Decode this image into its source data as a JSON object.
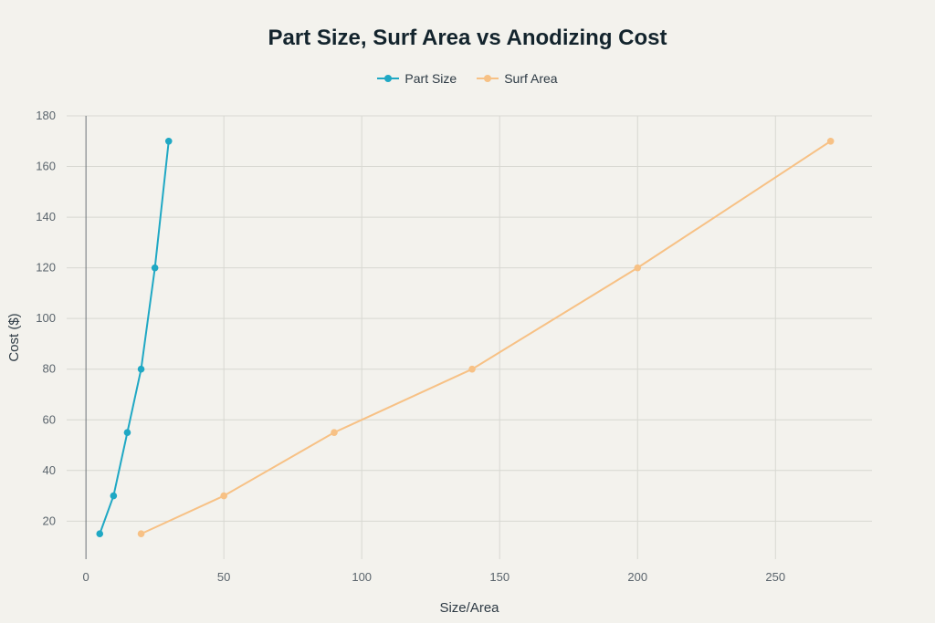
{
  "chart_data": {
    "type": "line",
    "title": "Part Size, Surf Area vs Anodizing Cost",
    "xlabel": "Size/Area",
    "ylabel": "Cost ($)",
    "xlim": [
      -7,
      285
    ],
    "ylim": [
      5,
      180
    ],
    "xticks": [
      0,
      50,
      100,
      150,
      200,
      250
    ],
    "yticks": [
      20,
      40,
      60,
      80,
      100,
      120,
      140,
      160,
      180
    ],
    "grid": true,
    "legend_position": "top-center",
    "series": [
      {
        "name": "Part Size",
        "color": "#1fa8c4",
        "x": [
          5,
          10,
          15,
          20,
          25,
          30
        ],
        "y": [
          15,
          30,
          55,
          80,
          120,
          170
        ]
      },
      {
        "name": "Surf Area",
        "color": "#f7c185",
        "x": [
          20,
          50,
          90,
          140,
          200,
          270
        ],
        "y": [
          15,
          30,
          55,
          80,
          120,
          170
        ]
      }
    ]
  }
}
